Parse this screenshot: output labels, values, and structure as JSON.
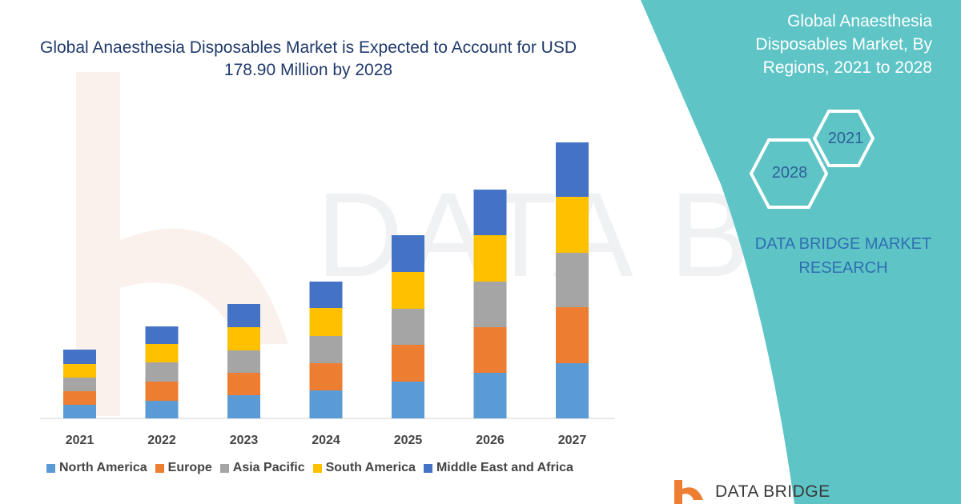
{
  "chart_title": "Global Anaesthesia Disposables Market is Expected to Account for USD 178.90 Million by 2028",
  "side_panel": {
    "title": "Global Anaesthesia Disposables Market, By Regions, 2021 to 2028",
    "hex_left": "2028",
    "hex_right": "2021",
    "brand_text": "DATA BRIDGE MARKET RESEARCH",
    "logo_text": "DATA BRIDGE"
  },
  "colors": {
    "panel": "#5ec4c6",
    "title": "#1f3a6b"
  },
  "chart_data": {
    "type": "bar",
    "stacked": true,
    "categories": [
      "2021",
      "2022",
      "2023",
      "2024",
      "2025",
      "2026",
      "2027"
    ],
    "series": [
      {
        "name": "North America",
        "color": "#5b9bd5",
        "values": [
          17,
          22,
          29,
          35,
          46,
          57,
          69
        ]
      },
      {
        "name": "Europe",
        "color": "#ed7d31",
        "values": [
          17,
          24,
          28,
          34,
          46,
          57,
          70
        ]
      },
      {
        "name": "Asia Pacific",
        "color": "#a5a5a5",
        "values": [
          17,
          24,
          28,
          34,
          45,
          57,
          68
        ]
      },
      {
        "name": "South America",
        "color": "#ffc000",
        "values": [
          17,
          23,
          29,
          35,
          46,
          58,
          70
        ]
      },
      {
        "name": "Middle East and Africa",
        "color": "#4472c4",
        "values": [
          18,
          22,
          29,
          33,
          46,
          57,
          68
        ]
      }
    ],
    "title": "",
    "xlabel": "",
    "ylabel": "",
    "ylim": [
      0,
      345
    ],
    "grid": false,
    "legend_position": "bottom"
  }
}
